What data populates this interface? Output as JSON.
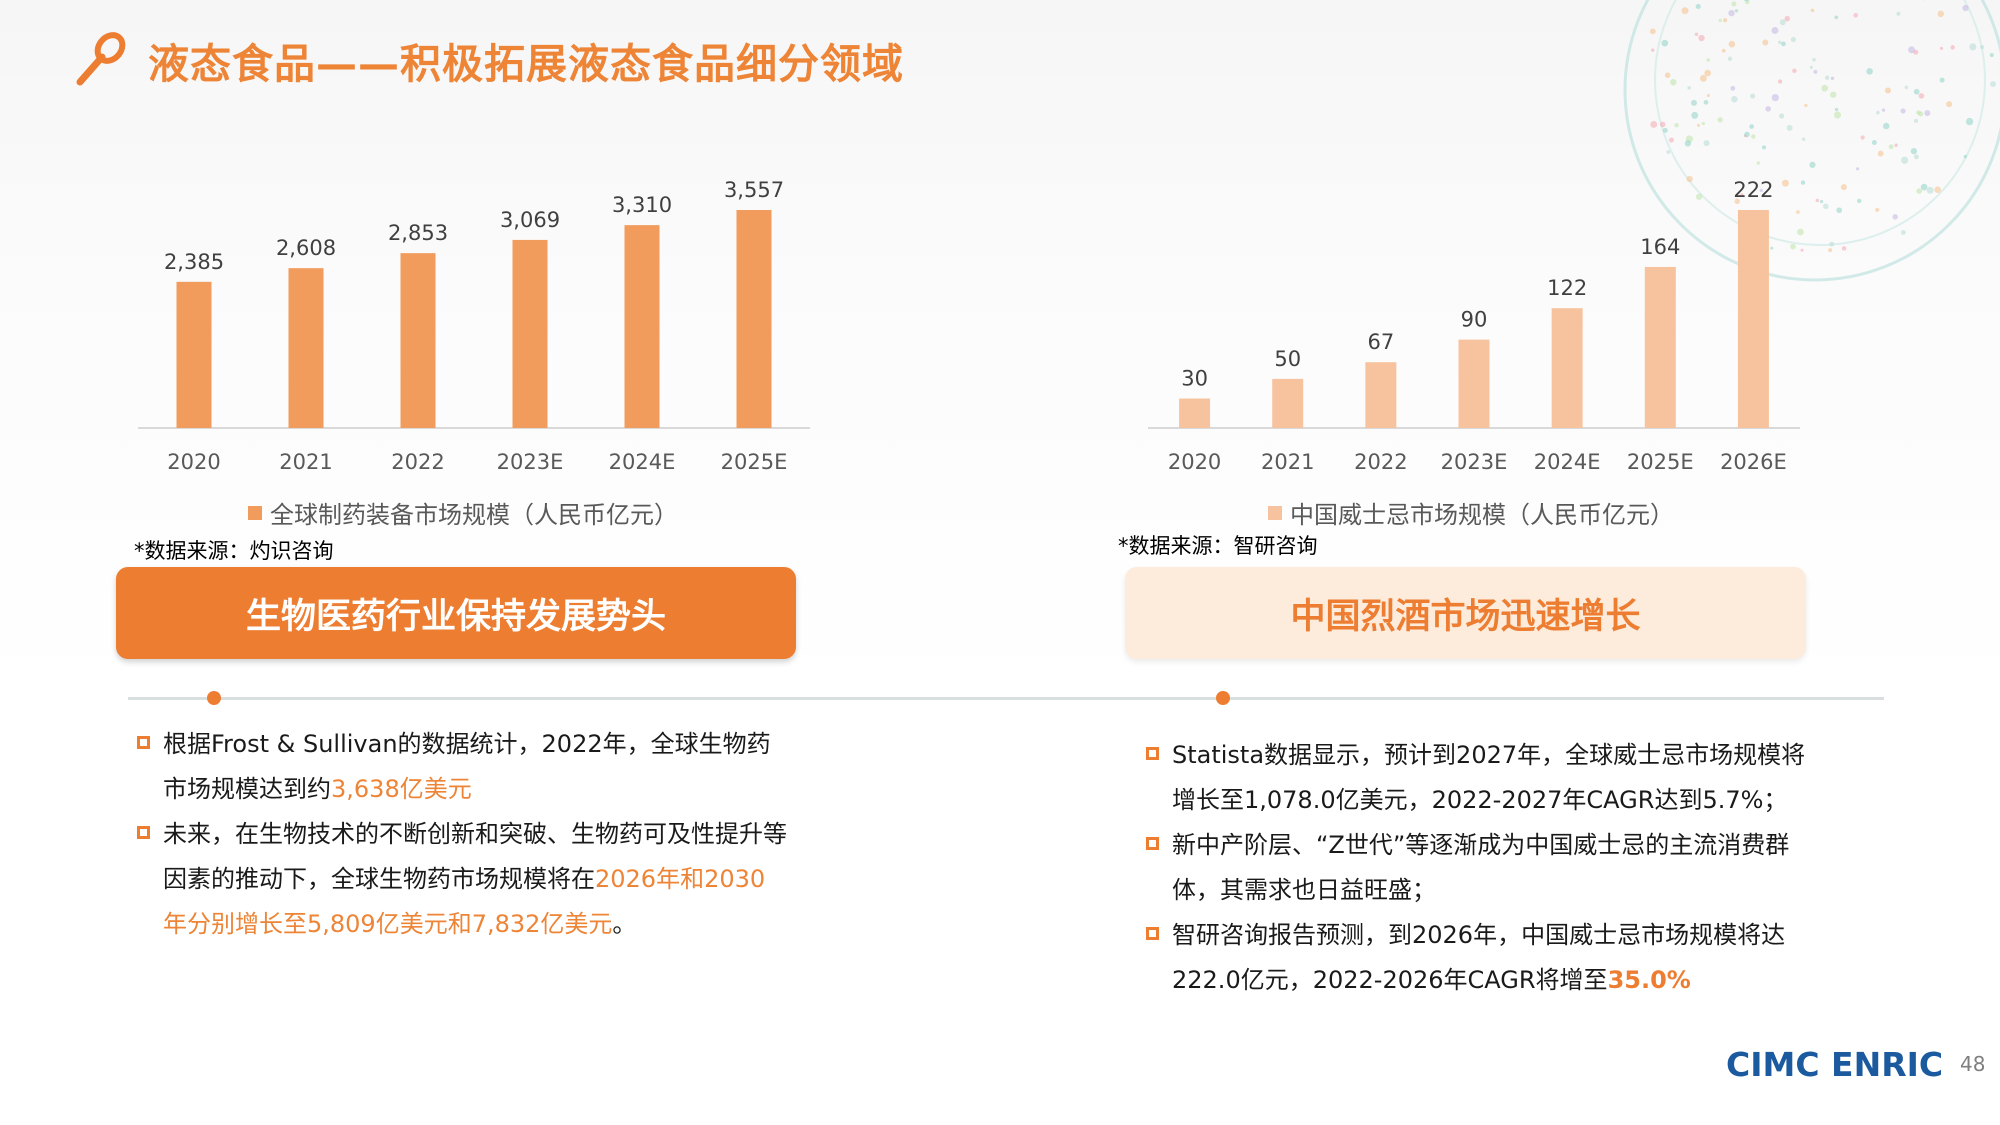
{
  "header": {
    "title": "液态食品——积极拓展液态食品细分领域"
  },
  "colors": {
    "accent": "#ed7d31",
    "bar_left": "#f19b5c",
    "bar_right": "#f7c39e",
    "logo": "#1b5a9e"
  },
  "chart_data": [
    {
      "type": "bar",
      "categories": [
        "2020",
        "2021",
        "2022",
        "2023E",
        "2024E",
        "2025E"
      ],
      "series": [
        {
          "name": "全球制药装备市场规模（人民币亿元）",
          "values": [
            2385,
            2608,
            2853,
            3069,
            3310,
            3557
          ]
        }
      ],
      "value_labels": [
        "2,385",
        "2,608",
        "2,853",
        "3,069",
        "3,310",
        "3,557"
      ],
      "source": "*数据来源：灼识咨询",
      "grid": false,
      "legend_position": "bottom"
    },
    {
      "type": "bar",
      "categories": [
        "2020",
        "2021",
        "2022",
        "2023E",
        "2024E",
        "2025E",
        "2026E"
      ],
      "series": [
        {
          "name": "中国威士忌市场规模（人民币亿元）",
          "values": [
            30,
            50,
            67,
            90,
            122,
            164,
            222
          ]
        }
      ],
      "value_labels": [
        "30",
        "50",
        "67",
        "90",
        "122",
        "164",
        "222"
      ],
      "source": "*数据来源：智研咨询",
      "grid": false,
      "legend_position": "bottom"
    }
  ],
  "left_panel": {
    "banner": "生物医药行业保持发展势头",
    "bullets": [
      {
        "text": "根据Frost & Sullivan的数据统计，2022年，全球生物药市场规模达到约",
        "highlight": "3,638亿美元",
        "tail": ""
      },
      {
        "text": "未来，在生物技术的不断创新和突破、生物药可及性提升等因素的推动下，全球生物药市场规模将在",
        "highlight": "2026年和2030年分别增长至5,809亿美元和7,832亿美元",
        "tail": "。"
      }
    ]
  },
  "right_panel": {
    "banner": "中国烈酒市场迅速增长",
    "bullets": [
      {
        "text": "Statista数据显示，预计到2027年，全球威士忌市场规模将增长至1,078.0亿美元，2022-2027年CAGR达到5.7%；",
        "highlight": "",
        "tail": ""
      },
      {
        "text": "新中产阶层、“Z世代”等逐渐成为中国威士忌的主流消费群体，其需求也日益旺盛；",
        "highlight": "",
        "tail": ""
      },
      {
        "text": "智研咨询报告预测，到2026年，中国威士忌市场规模将达222.0亿元，2022-2026年CAGR将增至",
        "highlight": "35.0%",
        "tail": ""
      }
    ]
  },
  "footer": {
    "logo": "CIMC ENRIC",
    "page_number": "48"
  }
}
